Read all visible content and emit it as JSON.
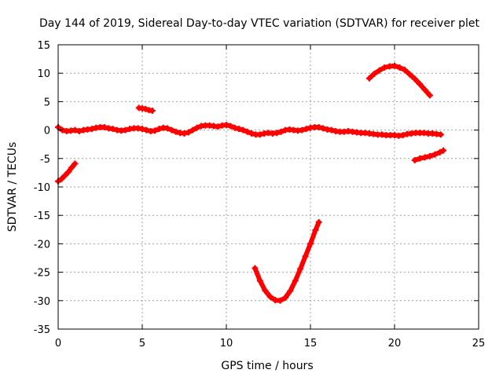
{
  "chart_data": {
    "type": "scatter",
    "title": "Day 144 of 2019, Sidereal Day-to-day VTEC variation (SDTVAR) for receiver plet",
    "xlabel": "GPS time / hours",
    "ylabel": "SDTVAR / TECUs",
    "xlim": [
      0,
      25
    ],
    "ylim": [
      -35,
      15
    ],
    "xticks": [
      0,
      5,
      10,
      15,
      20,
      25
    ],
    "yticks": [
      -35,
      -30,
      -25,
      -20,
      -15,
      -10,
      -5,
      0,
      5,
      10,
      15
    ],
    "grid": true,
    "series_color": "#ff0000",
    "series": [
      {
        "name": "main-band",
        "x": [
          0.0,
          0.25,
          0.5,
          0.75,
          1.0,
          1.25,
          1.5,
          1.75,
          2.0,
          2.25,
          2.5,
          2.75,
          3.0,
          3.25,
          3.5,
          3.75,
          4.0,
          4.25,
          4.5,
          4.75,
          5.0,
          5.25,
          5.5,
          5.75,
          6.0,
          6.25,
          6.5,
          6.75,
          7.0,
          7.25,
          7.5,
          7.75,
          8.0,
          8.25,
          8.5,
          8.75,
          9.0,
          9.25,
          9.5,
          9.75,
          10.0,
          10.25,
          10.5,
          10.75,
          11.0,
          11.25,
          11.5,
          11.75,
          12.0,
          12.25,
          12.5,
          12.75,
          13.0,
          13.25,
          13.5,
          13.75,
          14.0,
          14.25,
          14.5,
          14.75,
          15.0,
          15.25,
          15.5,
          15.75,
          16.0,
          16.25,
          16.5,
          16.75,
          17.0,
          17.25,
          17.5,
          17.75,
          18.0,
          18.25,
          18.5,
          18.75,
          19.0,
          19.25,
          19.5,
          19.75,
          20.0,
          20.25,
          20.5,
          20.75,
          21.0,
          21.25,
          21.5,
          21.75,
          22.0,
          22.25,
          22.5,
          22.75
        ],
        "y": [
          0.5,
          0.0,
          -0.2,
          -0.1,
          0.0,
          -0.2,
          0.0,
          0.1,
          0.2,
          0.4,
          0.5,
          0.5,
          0.3,
          0.2,
          0.0,
          -0.1,
          0.0,
          0.2,
          0.3,
          0.3,
          0.2,
          0.0,
          -0.2,
          -0.1,
          0.2,
          0.4,
          0.3,
          0.0,
          -0.3,
          -0.5,
          -0.6,
          -0.4,
          0.0,
          0.4,
          0.7,
          0.8,
          0.8,
          0.7,
          0.6,
          0.8,
          0.9,
          0.7,
          0.4,
          0.2,
          0.0,
          -0.3,
          -0.6,
          -0.8,
          -0.8,
          -0.6,
          -0.5,
          -0.6,
          -0.5,
          -0.3,
          0.0,
          0.1,
          0.0,
          -0.1,
          0.0,
          0.2,
          0.4,
          0.5,
          0.5,
          0.3,
          0.1,
          0.0,
          -0.2,
          -0.3,
          -0.3,
          -0.2,
          -0.3,
          -0.4,
          -0.5,
          -0.5,
          -0.6,
          -0.7,
          -0.8,
          -0.8,
          -0.9,
          -0.9,
          -0.9,
          -1.0,
          -0.9,
          -0.7,
          -0.6,
          -0.5,
          -0.5,
          -0.5,
          -0.6,
          -0.6,
          -0.7,
          -0.8
        ]
      },
      {
        "name": "early-descending",
        "x": [
          0.0,
          0.2,
          0.4,
          0.6,
          0.8,
          1.0
        ],
        "y": [
          -9.0,
          -8.6,
          -8.0,
          -7.4,
          -6.6,
          -5.9
        ]
      },
      {
        "name": "short-segment-near-5h",
        "x": [
          4.8,
          5.0,
          5.2,
          5.4,
          5.6
        ],
        "y": [
          3.9,
          3.8,
          3.7,
          3.5,
          3.4
        ]
      },
      {
        "name": "deep-dip",
        "x": [
          11.7,
          12.0,
          12.3,
          12.6,
          12.9,
          13.2,
          13.5,
          13.8,
          14.1,
          14.4,
          14.7,
          15.0,
          15.3,
          15.5
        ],
        "y": [
          -24.3,
          -26.5,
          -28.2,
          -29.3,
          -29.9,
          -30.0,
          -29.5,
          -28.3,
          -26.5,
          -24.4,
          -22.2,
          -20.0,
          -17.6,
          -16.2
        ]
      },
      {
        "name": "high-arc",
        "x": [
          18.5,
          18.8,
          19.1,
          19.4,
          19.7,
          20.0,
          20.3,
          20.6,
          20.9,
          21.2,
          21.5,
          21.8,
          22.1
        ],
        "y": [
          9.1,
          9.9,
          10.5,
          11.0,
          11.2,
          11.3,
          11.0,
          10.6,
          9.8,
          9.0,
          8.1,
          7.1,
          6.1
        ]
      },
      {
        "name": "late-segment",
        "x": [
          21.2,
          21.5,
          21.8,
          22.1,
          22.4,
          22.7,
          22.9
        ],
        "y": [
          -5.3,
          -5.0,
          -4.8,
          -4.6,
          -4.3,
          -3.9,
          -3.6
        ]
      }
    ]
  }
}
